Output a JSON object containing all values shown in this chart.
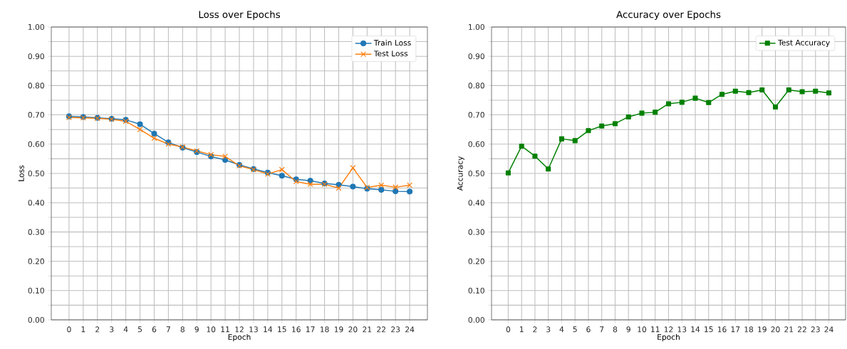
{
  "chart_data": [
    {
      "type": "line",
      "title": "Loss over Epochs",
      "xlabel": "Epoch",
      "ylabel": "Loss",
      "categories": [
        "0",
        "1",
        "2",
        "3",
        "4",
        "5",
        "6",
        "7",
        "8",
        "9",
        "10",
        "11",
        "12",
        "13",
        "14",
        "15",
        "16",
        "17",
        "18",
        "19",
        "20",
        "21",
        "22",
        "23",
        "24"
      ],
      "series": [
        {
          "name": "Train Loss",
          "color": "#1f77b4",
          "marker": "circle",
          "values": [
            0.695,
            0.693,
            0.69,
            0.687,
            0.683,
            0.668,
            0.636,
            0.606,
            0.588,
            0.573,
            0.558,
            0.546,
            0.529,
            0.515,
            0.503,
            0.492,
            0.48,
            0.475,
            0.466,
            0.461,
            0.455,
            0.448,
            0.444,
            0.439,
            0.438
          ]
        },
        {
          "name": "Test Loss",
          "color": "#ff7f0e",
          "marker": "cross",
          "values": [
            0.691,
            0.69,
            0.688,
            0.685,
            0.678,
            0.65,
            0.62,
            0.6,
            0.59,
            0.577,
            0.564,
            0.558,
            0.526,
            0.513,
            0.498,
            0.513,
            0.472,
            0.463,
            0.463,
            0.45,
            0.519,
            0.452,
            0.46,
            0.453,
            0.46
          ]
        }
      ],
      "ylim": [
        0,
        1
      ],
      "yticks": [
        {
          "value": 0,
          "label": "0.00"
        },
        {
          "value": 0.05,
          "label": null
        },
        {
          "value": 0.1,
          "label": "0.10"
        },
        {
          "value": 0.15,
          "label": null
        },
        {
          "value": 0.2,
          "label": "0.20"
        },
        {
          "value": 0.25,
          "label": null
        },
        {
          "value": 0.3,
          "label": "0.30"
        },
        {
          "value": 0.35,
          "label": null
        },
        {
          "value": 0.4,
          "label": "0.40"
        },
        {
          "value": 0.45,
          "label": null
        },
        {
          "value": 0.5,
          "label": "0.50"
        },
        {
          "value": 0.55,
          "label": null
        },
        {
          "value": 0.6,
          "label": "0.60"
        },
        {
          "value": 0.65,
          "label": null
        },
        {
          "value": 0.7,
          "label": "0.70"
        },
        {
          "value": 0.75,
          "label": null
        },
        {
          "value": 0.8,
          "label": "0.80"
        },
        {
          "value": 0.85,
          "label": null
        },
        {
          "value": 0.9,
          "label": "0.90"
        },
        {
          "value": 0.95,
          "label": null
        },
        {
          "value": 1.0,
          "label": "1.00"
        }
      ],
      "grid": true,
      "legend": "top right",
      "line_style": "solid"
    },
    {
      "type": "line",
      "title": "Accuracy over Epochs",
      "xlabel": "Epoch",
      "ylabel": "Accuracy",
      "categories": [
        "0",
        "1",
        "2",
        "3",
        "4",
        "5",
        "6",
        "7",
        "8",
        "9",
        "10",
        "11",
        "12",
        "13",
        "14",
        "15",
        "16",
        "17",
        "18",
        "19",
        "20",
        "21",
        "22",
        "23",
        "24"
      ],
      "series": [
        {
          "name": "Test Accuracy",
          "color": "#008000",
          "marker": "square",
          "values": [
            0.502,
            0.593,
            0.559,
            0.515,
            0.618,
            0.612,
            0.646,
            0.662,
            0.67,
            0.693,
            0.706,
            0.709,
            0.738,
            0.743,
            0.757,
            0.742,
            0.77,
            0.781,
            0.776,
            0.785,
            0.727,
            0.785,
            0.779,
            0.781,
            0.775
          ]
        }
      ],
      "ylim": [
        0,
        1
      ],
      "yticks": [
        {
          "value": 0,
          "label": "0.00"
        },
        {
          "value": 0.05,
          "label": null
        },
        {
          "value": 0.1,
          "label": "0.10"
        },
        {
          "value": 0.15,
          "label": null
        },
        {
          "value": 0.2,
          "label": "0.20"
        },
        {
          "value": 0.25,
          "label": null
        },
        {
          "value": 0.3,
          "label": "0.30"
        },
        {
          "value": 0.35,
          "label": null
        },
        {
          "value": 0.4,
          "label": "0.40"
        },
        {
          "value": 0.45,
          "label": null
        },
        {
          "value": 0.5,
          "label": "0.50"
        },
        {
          "value": 0.55,
          "label": null
        },
        {
          "value": 0.6,
          "label": "0.60"
        },
        {
          "value": 0.65,
          "label": null
        },
        {
          "value": 0.7,
          "label": "0.70"
        },
        {
          "value": 0.75,
          "label": null
        },
        {
          "value": 0.8,
          "label": "0.80"
        },
        {
          "value": 0.85,
          "label": null
        },
        {
          "value": 0.9,
          "label": "0.90"
        },
        {
          "value": 0.95,
          "label": null
        },
        {
          "value": 1.0,
          "label": "1.00"
        }
      ],
      "grid": true,
      "legend": "top right",
      "line_style": "solid"
    }
  ]
}
